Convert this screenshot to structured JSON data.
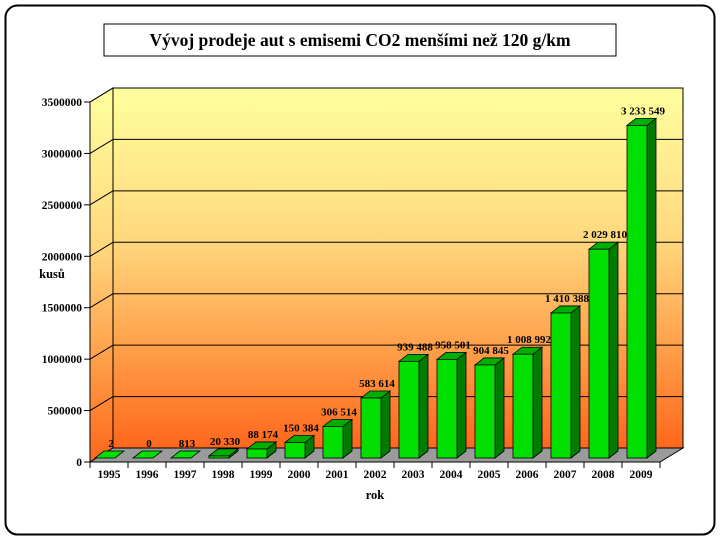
{
  "page": {
    "background": "#ffffff",
    "border_color": "#000000"
  },
  "chart_data": {
    "type": "bar",
    "style": "3d-column",
    "title": "Vývoj prodeje aut s emisemi CO2 menšími než 120 g/km",
    "xlabel": "rok",
    "ylabel": "kusů",
    "categories": [
      "1995",
      "1996",
      "1997",
      "1998",
      "1999",
      "2000",
      "2001",
      "2002",
      "2003",
      "2004",
      "2005",
      "2006",
      "2007",
      "2008",
      "2009"
    ],
    "values": [
      2,
      0,
      813,
      20330,
      88174,
      150384,
      306514,
      583614,
      939488,
      958501,
      904845,
      1008992,
      1410388,
      2029810,
      3233549
    ],
    "value_labels": [
      "2",
      "0",
      "813",
      "20 330",
      "88 174",
      "150 384",
      "306 514",
      "583 614",
      "939 488",
      "958 501",
      "904 845",
      "1 008 992",
      "1 410 388",
      "2 029 810",
      "3 233 549"
    ],
    "ylim": [
      0,
      3500000
    ],
    "ytick_step": 500000,
    "ytick_labels": [
      "0",
      "500000",
      "1000000",
      "1500000",
      "2000000",
      "2500000",
      "3000000",
      "3500000"
    ],
    "grid": true,
    "legend": false,
    "colors": {
      "bar_front": "#00DF00",
      "bar_top": "#00AE00",
      "bar_side": "#007C00",
      "outline": "#000000",
      "wall_top": "#FFFF9E",
      "wall_mid1": "#FFD87E",
      "wall_mid2": "#FF9A45",
      "wall_bottom": "#FF671C",
      "floor": "#9B9B9B",
      "text": "#000000"
    }
  }
}
